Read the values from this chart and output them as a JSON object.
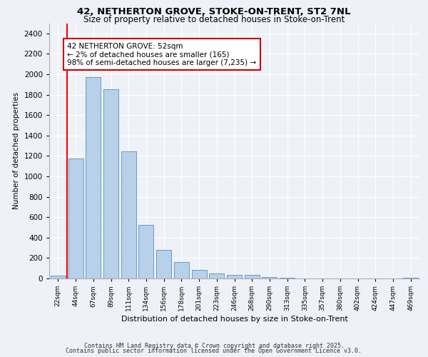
{
  "title_line1": "42, NETHERTON GROVE, STOKE-ON-TRENT, ST2 7NL",
  "title_line2": "Size of property relative to detached houses in Stoke-on-Trent",
  "xlabel": "Distribution of detached houses by size in Stoke-on-Trent",
  "ylabel": "Number of detached properties",
  "categories": [
    "22sqm",
    "44sqm",
    "67sqm",
    "89sqm",
    "111sqm",
    "134sqm",
    "156sqm",
    "178sqm",
    "201sqm",
    "223sqm",
    "246sqm",
    "268sqm",
    "290sqm",
    "313sqm",
    "335sqm",
    "357sqm",
    "380sqm",
    "402sqm",
    "424sqm",
    "447sqm",
    "469sqm"
  ],
  "values": [
    25,
    1175,
    1975,
    1855,
    1245,
    525,
    280,
    160,
    85,
    50,
    38,
    35,
    12,
    5,
    2,
    1,
    1,
    1,
    0,
    0,
    5
  ],
  "bar_color": "#b8d0ea",
  "bar_edge_color": "#6699cc",
  "red_line_x": 0.5,
  "annotation_text": "42 NETHERTON GROVE: 52sqm\n← 2% of detached houses are smaller (165)\n98% of semi-detached houses are larger (7,235) →",
  "annotation_box_color": "#ffffff",
  "annotation_box_edge_color": "#cc0000",
  "ylim": [
    0,
    2500
  ],
  "yticks": [
    0,
    200,
    400,
    600,
    800,
    1000,
    1200,
    1400,
    1600,
    1800,
    2000,
    2200,
    2400
  ],
  "background_color": "#eef2f8",
  "grid_color": "#ffffff",
  "footer_line1": "Contains HM Land Registry data © Crown copyright and database right 2025.",
  "footer_line2": "Contains public sector information licensed under the Open Government Licence v3.0."
}
